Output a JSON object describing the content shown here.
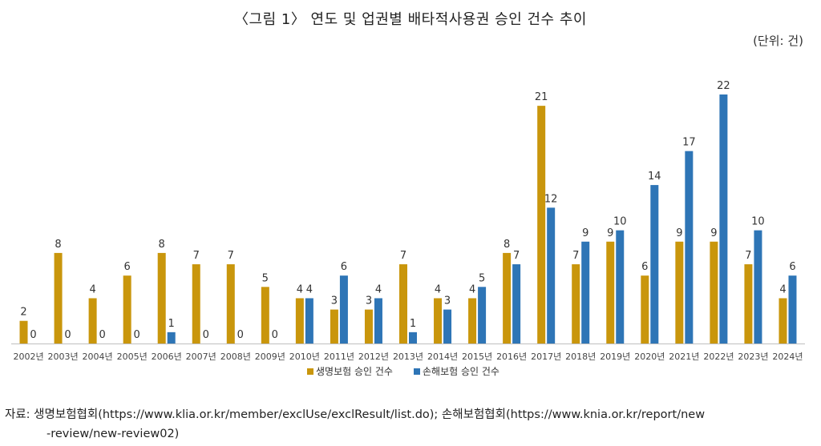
{
  "title": "〈그림 1〉 연도 및 업권별 배타적사용권 승인 건수 추이",
  "unit": "(단위: 건)",
  "source_line1": "자료: 생명보험협회(https://www.klia.or.kr/member/exclUse/exclResult/list.do); 손해보험협회(https://www.knia.or.kr/report/new",
  "source_line2": "-review/new-review02)",
  "colors": {
    "life": "#C9960C",
    "nonlife": "#2E75B6",
    "axis": "#bfbfbf"
  },
  "chart_data": {
    "type": "bar",
    "title": "〈그림 1〉 연도 및 업권별 배타적사용권 승인 건수 추이",
    "ylabel": "",
    "xlabel": "",
    "ylim": [
      0,
      22
    ],
    "grid": false,
    "legend": "bottom",
    "categories": [
      "2002년",
      "2003년",
      "2004년",
      "2005년",
      "2006년",
      "2007년",
      "2008년",
      "2009년",
      "2010년",
      "2011년",
      "2012년",
      "2013년",
      "2014년",
      "2015년",
      "2016년",
      "2017년",
      "2018년",
      "2019년",
      "2020년",
      "2021년",
      "2022년",
      "2023년",
      "2024년"
    ],
    "series": [
      {
        "name": "생명보험 승인 건수",
        "values": [
          2,
          8,
          4,
          6,
          8,
          7,
          7,
          5,
          4,
          3,
          3,
          7,
          4,
          4,
          8,
          21,
          7,
          9,
          6,
          9,
          9,
          7,
          4
        ]
      },
      {
        "name": "손해보험 승인 건수",
        "values": [
          0,
          0,
          0,
          0,
          1,
          0,
          0,
          0,
          4,
          6,
          4,
          1,
          3,
          5,
          7,
          12,
          9,
          10,
          14,
          17,
          22,
          10,
          6
        ]
      }
    ]
  }
}
